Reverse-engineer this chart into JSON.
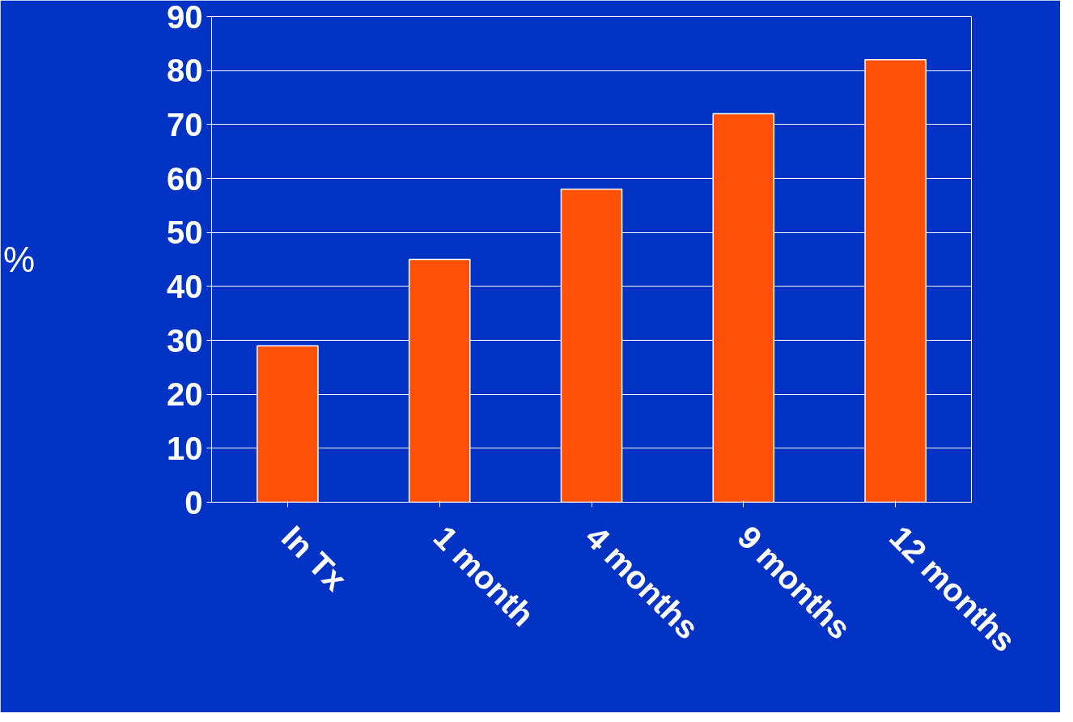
{
  "chart_data": {
    "type": "bar",
    "ylabel": "%",
    "categories": [
      "In Tx",
      "1 month",
      "4 months",
      "9 months",
      "12 months"
    ],
    "values": [
      29,
      45,
      58,
      72,
      82
    ],
    "color": "#ff5008",
    "ylim": [
      0,
      90
    ],
    "yticks": [
      0,
      10,
      20,
      30,
      40,
      50,
      60,
      70,
      80,
      90
    ],
    "grid": "y"
  }
}
